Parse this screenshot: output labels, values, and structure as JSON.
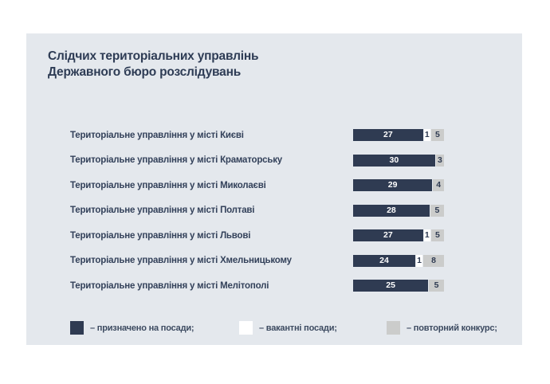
{
  "title": {
    "line1": "Слідчих територіальних управлінь",
    "line2": "Державного бюро розслідувань"
  },
  "colors": {
    "card_background": "#e4e8ed",
    "bar_appointed": "#2f3b52",
    "bar_vacant": "#ffffff",
    "bar_repeat": "#cbcccb",
    "text_navy": "#2e3c55"
  },
  "chart_data": {
    "type": "bar",
    "orientation": "horizontal-stacked",
    "title": "Слідчих територіальних управлінь Державного бюро розслідувань",
    "categories": [
      "Територіальне управління у місті Києві",
      "Територіальне управління у місті Краматорську",
      "Територіальне управління у місті Миколаєві",
      "Територіальне управління у місті Полтаві",
      "Територіальне управління у місті Львові",
      "Територіальне управління у місті Хмельницькому",
      "Територіальне управління у місті Мелітополі"
    ],
    "series": [
      {
        "key": "appointed",
        "name": "призначено на посади",
        "values": [
          27,
          30,
          29,
          28,
          27,
          24,
          25
        ]
      },
      {
        "key": "vacant",
        "name": "вакантні посади",
        "values": [
          1,
          0,
          0,
          0,
          1,
          1,
          0
        ]
      },
      {
        "key": "repeat",
        "name": "повторний конкурс",
        "values": [
          5,
          3,
          4,
          5,
          5,
          8,
          5
        ]
      }
    ],
    "bars_normalized_to_equal_width": true,
    "data_labels": "inside each segment",
    "legend_position": "bottom",
    "grid": false,
    "axes": false
  },
  "legend": {
    "items": [
      {
        "key": "appointed",
        "label": "– призначено на посади;"
      },
      {
        "key": "vacant",
        "label": "– вакантні посади;"
      },
      {
        "key": "repeat",
        "label": "– повторний конкурс;"
      }
    ]
  }
}
